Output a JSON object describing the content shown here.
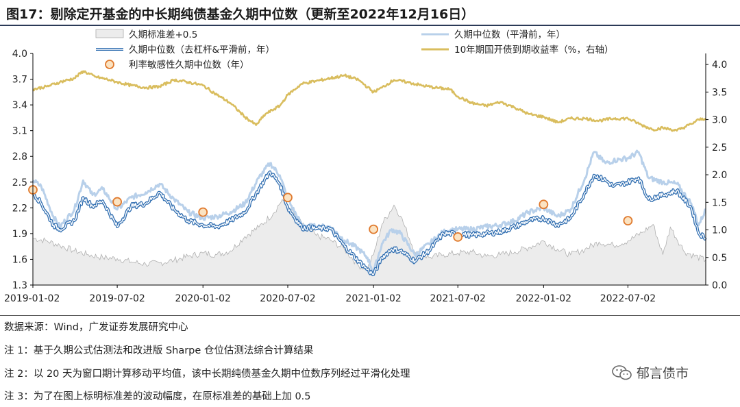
{
  "title": "图17：剔除定开基金的中长期纯债基金久期中位数（更新至2022年12月16日）",
  "notes": [
    "数据来源：Wind，广发证券发展研究中心",
    "注 1：基于久期公式估测法和改进版 Sharpe 仓位估测法综合计算结果",
    "注 2：以 20 天为窗口期计算移动平均值，该中长期纯债基金久期中位数序列经过平滑化处理",
    "注 3：为了在图上标明标准差的波动幅度，在原标准差的基础上加 0.5"
  ],
  "watermark": "郁言债市",
  "chart_data": {
    "type": "line",
    "x_tick_labels": [
      "2019-01-02",
      "2019-07-02",
      "2020-01-02",
      "2020-07-02",
      "2021-01-02",
      "2021-07-02",
      "2022-01-02",
      "2022-07-02"
    ],
    "x_range": [
      "2019-01-02",
      "2022-12-16"
    ],
    "y_left": {
      "range": [
        1.3,
        4.0
      ],
      "ticks": [
        "1.3",
        "1.6",
        "1.9",
        "2.2",
        "2.5",
        "2.8",
        "3.1",
        "3.4",
        "3.7",
        "4.0"
      ]
    },
    "y_right": {
      "range": [
        0.0,
        4.2
      ],
      "ticks": [
        "0.0",
        "0.5",
        "1.0",
        "1.5",
        "2.0",
        "2.5",
        "3.0",
        "3.5",
        "4.0"
      ]
    },
    "grid": false,
    "legend_position": "top",
    "series": [
      {
        "name": "久期标准差+0.5",
        "kind": "area",
        "axis": "right",
        "color": "#d9d9d9",
        "points": [
          [
            "2019-01-02",
            0.85
          ],
          [
            "2019-02-01",
            0.8
          ],
          [
            "2019-03-01",
            0.72
          ],
          [
            "2019-04-01",
            0.62
          ],
          [
            "2019-05-01",
            0.55
          ],
          [
            "2019-06-01",
            0.5
          ],
          [
            "2019-07-02",
            0.48
          ],
          [
            "2019-08-01",
            0.42
          ],
          [
            "2019-09-01",
            0.38
          ],
          [
            "2019-10-01",
            0.4
          ],
          [
            "2019-11-01",
            0.45
          ],
          [
            "2019-12-01",
            0.52
          ],
          [
            "2020-01-02",
            0.58
          ],
          [
            "2020-02-01",
            0.55
          ],
          [
            "2020-03-01",
            0.62
          ],
          [
            "2020-04-01",
            0.88
          ],
          [
            "2020-05-01",
            1.05
          ],
          [
            "2020-06-01",
            1.3
          ],
          [
            "2020-06-20",
            1.55
          ],
          [
            "2020-07-02",
            1.45
          ],
          [
            "2020-08-01",
            1.1
          ],
          [
            "2020-09-01",
            0.9
          ],
          [
            "2020-10-01",
            0.82
          ],
          [
            "2020-11-01",
            0.65
          ],
          [
            "2020-12-01",
            0.35
          ],
          [
            "2020-12-20",
            0.3
          ],
          [
            "2021-01-02",
            0.55
          ],
          [
            "2021-01-20",
            1.1
          ],
          [
            "2021-02-15",
            1.45
          ],
          [
            "2021-03-01",
            1.25
          ],
          [
            "2021-04-01",
            0.6
          ],
          [
            "2021-05-01",
            0.5
          ],
          [
            "2021-06-01",
            0.55
          ],
          [
            "2021-07-02",
            0.58
          ],
          [
            "2021-08-01",
            0.6
          ],
          [
            "2021-09-01",
            0.52
          ],
          [
            "2021-10-01",
            0.55
          ],
          [
            "2021-11-01",
            0.6
          ],
          [
            "2021-12-01",
            0.68
          ],
          [
            "2022-01-02",
            0.8
          ],
          [
            "2022-02-01",
            0.65
          ],
          [
            "2022-03-01",
            0.55
          ],
          [
            "2022-04-01",
            0.65
          ],
          [
            "2022-05-01",
            0.78
          ],
          [
            "2022-06-01",
            0.72
          ],
          [
            "2022-07-02",
            0.8
          ],
          [
            "2022-08-01",
            0.95
          ],
          [
            "2022-08-25",
            1.1
          ],
          [
            "2022-09-15",
            0.55
          ],
          [
            "2022-10-01",
            1.05
          ],
          [
            "2022-11-01",
            0.6
          ],
          [
            "2022-12-16",
            0.45
          ]
        ]
      },
      {
        "name": "久期中位数（平滑前，年）",
        "kind": "line",
        "axis": "left",
        "color": "#b8d0ea",
        "points": [
          [
            "2019-01-02",
            2.52
          ],
          [
            "2019-01-20",
            2.45
          ],
          [
            "2019-02-15",
            2.1
          ],
          [
            "2019-03-01",
            1.98
          ],
          [
            "2019-04-01",
            2.18
          ],
          [
            "2019-04-20",
            2.52
          ],
          [
            "2019-05-10",
            2.35
          ],
          [
            "2019-06-01",
            2.42
          ],
          [
            "2019-07-02",
            2.18
          ],
          [
            "2019-08-01",
            2.32
          ],
          [
            "2019-09-01",
            2.38
          ],
          [
            "2019-10-01",
            2.48
          ],
          [
            "2019-11-01",
            2.3
          ],
          [
            "2019-12-01",
            2.15
          ],
          [
            "2020-01-02",
            2.08
          ],
          [
            "2020-02-01",
            2.1
          ],
          [
            "2020-03-01",
            2.15
          ],
          [
            "2020-04-01",
            2.25
          ],
          [
            "2020-05-01",
            2.55
          ],
          [
            "2020-05-25",
            2.72
          ],
          [
            "2020-06-15",
            2.58
          ],
          [
            "2020-07-02",
            2.3
          ],
          [
            "2020-08-01",
            2.0
          ],
          [
            "2020-09-01",
            1.98
          ],
          [
            "2020-10-01",
            1.98
          ],
          [
            "2020-11-01",
            1.82
          ],
          [
            "2020-12-01",
            1.72
          ],
          [
            "2020-12-20",
            1.62
          ],
          [
            "2021-01-02",
            1.45
          ],
          [
            "2021-01-20",
            1.78
          ],
          [
            "2021-02-10",
            1.95
          ],
          [
            "2021-03-01",
            1.9
          ],
          [
            "2021-04-01",
            1.65
          ],
          [
            "2021-05-01",
            1.78
          ],
          [
            "2021-06-01",
            1.92
          ],
          [
            "2021-07-02",
            1.95
          ],
          [
            "2021-08-01",
            1.95
          ],
          [
            "2021-09-01",
            1.98
          ],
          [
            "2021-10-01",
            2.0
          ],
          [
            "2021-11-01",
            2.05
          ],
          [
            "2021-12-01",
            2.15
          ],
          [
            "2022-01-02",
            2.2
          ],
          [
            "2022-02-01",
            2.1
          ],
          [
            "2022-03-01",
            2.18
          ],
          [
            "2022-04-01",
            2.55
          ],
          [
            "2022-04-20",
            2.85
          ],
          [
            "2022-05-15",
            2.72
          ],
          [
            "2022-06-01",
            2.75
          ],
          [
            "2022-07-02",
            2.78
          ],
          [
            "2022-07-25",
            2.85
          ],
          [
            "2022-08-15",
            2.55
          ],
          [
            "2022-09-15",
            2.5
          ],
          [
            "2022-10-15",
            2.48
          ],
          [
            "2022-11-15",
            2.25
          ],
          [
            "2022-12-01",
            2.0
          ],
          [
            "2022-12-16",
            2.18
          ]
        ]
      },
      {
        "name": "久期中位数（去杠杆&平滑前，年）",
        "kind": "line",
        "axis": "left",
        "color": "#2f6db0",
        "points": [
          [
            "2019-01-02",
            2.38
          ],
          [
            "2019-01-20",
            2.25
          ],
          [
            "2019-02-15",
            2.0
          ],
          [
            "2019-03-01",
            1.95
          ],
          [
            "2019-04-01",
            2.05
          ],
          [
            "2019-04-20",
            2.32
          ],
          [
            "2019-05-10",
            2.22
          ],
          [
            "2019-06-01",
            2.28
          ],
          [
            "2019-07-02",
            1.98
          ],
          [
            "2019-08-01",
            2.22
          ],
          [
            "2019-09-01",
            2.25
          ],
          [
            "2019-10-01",
            2.38
          ],
          [
            "2019-11-01",
            2.18
          ],
          [
            "2019-12-01",
            2.05
          ],
          [
            "2020-01-02",
            2.0
          ],
          [
            "2020-02-01",
            1.98
          ],
          [
            "2020-03-01",
            2.05
          ],
          [
            "2020-04-01",
            2.15
          ],
          [
            "2020-05-01",
            2.42
          ],
          [
            "2020-05-25",
            2.62
          ],
          [
            "2020-06-15",
            2.48
          ],
          [
            "2020-07-02",
            2.2
          ],
          [
            "2020-08-01",
            1.97
          ],
          [
            "2020-09-01",
            1.96
          ],
          [
            "2020-10-01",
            1.96
          ],
          [
            "2020-11-01",
            1.75
          ],
          [
            "2020-12-01",
            1.58
          ],
          [
            "2020-12-20",
            1.48
          ],
          [
            "2021-01-02",
            1.42
          ],
          [
            "2021-01-20",
            1.62
          ],
          [
            "2021-02-10",
            1.72
          ],
          [
            "2021-03-01",
            1.7
          ],
          [
            "2021-04-01",
            1.58
          ],
          [
            "2021-05-01",
            1.7
          ],
          [
            "2021-06-01",
            1.9
          ],
          [
            "2021-07-02",
            1.9
          ],
          [
            "2021-08-01",
            1.88
          ],
          [
            "2021-09-01",
            1.9
          ],
          [
            "2021-10-01",
            1.92
          ],
          [
            "2021-11-01",
            1.98
          ],
          [
            "2021-12-01",
            2.05
          ],
          [
            "2022-01-02",
            2.08
          ],
          [
            "2022-02-01",
            2.0
          ],
          [
            "2022-03-01",
            2.08
          ],
          [
            "2022-04-01",
            2.38
          ],
          [
            "2022-04-20",
            2.58
          ],
          [
            "2022-05-15",
            2.52
          ],
          [
            "2022-06-01",
            2.45
          ],
          [
            "2022-07-02",
            2.5
          ],
          [
            "2022-07-25",
            2.55
          ],
          [
            "2022-08-15",
            2.3
          ],
          [
            "2022-09-15",
            2.35
          ],
          [
            "2022-10-15",
            2.4
          ],
          [
            "2022-11-15",
            2.2
          ],
          [
            "2022-12-01",
            1.9
          ],
          [
            "2022-12-16",
            1.85
          ]
        ]
      },
      {
        "name": "10年期国开债到期收益率（%，右轴）",
        "kind": "line",
        "axis": "right",
        "color": "#d9bd5e",
        "points": [
          [
            "2019-01-02",
            3.55
          ],
          [
            "2019-02-01",
            3.6
          ],
          [
            "2019-03-01",
            3.68
          ],
          [
            "2019-04-01",
            3.75
          ],
          [
            "2019-04-20",
            3.88
          ],
          [
            "2019-05-15",
            3.78
          ],
          [
            "2019-06-15",
            3.72
          ],
          [
            "2019-07-02",
            3.68
          ],
          [
            "2019-08-01",
            3.62
          ],
          [
            "2019-09-01",
            3.58
          ],
          [
            "2019-10-01",
            3.6
          ],
          [
            "2019-11-01",
            3.72
          ],
          [
            "2019-12-01",
            3.68
          ],
          [
            "2020-01-02",
            3.62
          ],
          [
            "2020-02-01",
            3.45
          ],
          [
            "2020-03-01",
            3.3
          ],
          [
            "2020-04-01",
            3.05
          ],
          [
            "2020-04-25",
            2.9
          ],
          [
            "2020-05-15",
            3.1
          ],
          [
            "2020-06-15",
            3.25
          ],
          [
            "2020-07-02",
            3.45
          ],
          [
            "2020-08-01",
            3.65
          ],
          [
            "2020-09-01",
            3.7
          ],
          [
            "2020-10-01",
            3.75
          ],
          [
            "2020-11-01",
            3.8
          ],
          [
            "2020-12-01",
            3.72
          ],
          [
            "2021-01-02",
            3.5
          ],
          [
            "2021-01-20",
            3.58
          ],
          [
            "2021-02-15",
            3.72
          ],
          [
            "2021-03-15",
            3.68
          ],
          [
            "2021-04-15",
            3.62
          ],
          [
            "2021-05-15",
            3.58
          ],
          [
            "2021-06-15",
            3.55
          ],
          [
            "2021-07-02",
            3.42
          ],
          [
            "2021-08-01",
            3.3
          ],
          [
            "2021-09-01",
            3.25
          ],
          [
            "2021-10-01",
            3.32
          ],
          [
            "2021-11-01",
            3.22
          ],
          [
            "2021-12-01",
            3.1
          ],
          [
            "2022-01-02",
            3.05
          ],
          [
            "2022-02-01",
            2.95
          ],
          [
            "2022-03-01",
            3.02
          ],
          [
            "2022-04-01",
            3.02
          ],
          [
            "2022-05-01",
            2.98
          ],
          [
            "2022-06-01",
            3.02
          ],
          [
            "2022-07-02",
            3.02
          ],
          [
            "2022-08-01",
            2.9
          ],
          [
            "2022-08-25",
            2.82
          ],
          [
            "2022-09-15",
            2.85
          ],
          [
            "2022-10-15",
            2.8
          ],
          [
            "2022-11-15",
            2.92
          ],
          [
            "2022-12-01",
            3.0
          ],
          [
            "2022-12-16",
            3.02
          ]
        ]
      },
      {
        "name": "利率敏感性久期中位数（年）",
        "kind": "scatter",
        "axis": "left",
        "color": "#e07a2e",
        "fill": "#fbe3c2",
        "points": [
          [
            "2019-01-02",
            2.41
          ],
          [
            "2019-07-02",
            2.27
          ],
          [
            "2020-01-02",
            2.15
          ],
          [
            "2020-07-02",
            2.32
          ],
          [
            "2021-01-02",
            1.95
          ],
          [
            "2021-07-02",
            1.86
          ],
          [
            "2022-01-02",
            2.24
          ],
          [
            "2022-07-02",
            2.05
          ]
        ]
      }
    ]
  }
}
